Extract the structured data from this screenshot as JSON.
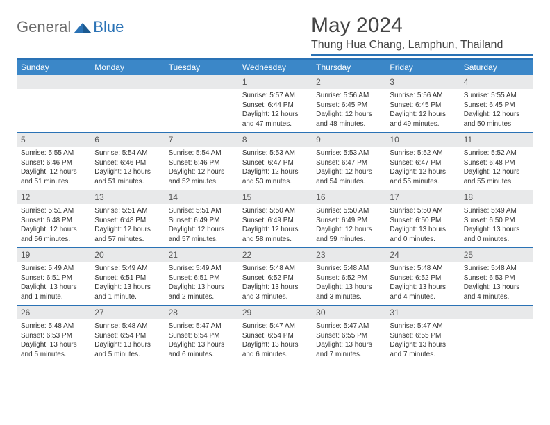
{
  "logo": {
    "part1": "General",
    "part2": "Blue"
  },
  "title": "May 2024",
  "location": "Thung Hua Chang, Lamphun, Thailand",
  "colors": {
    "accent": "#3b87c8",
    "rule": "#2a72b5",
    "dayBg": "#e8e9ea",
    "text": "#333333"
  },
  "dayHeaders": [
    "Sunday",
    "Monday",
    "Tuesday",
    "Wednesday",
    "Thursday",
    "Friday",
    "Saturday"
  ],
  "weeks": [
    [
      null,
      null,
      null,
      {
        "n": "1",
        "sr": "5:57 AM",
        "ss": "6:44 PM",
        "dl1": "12 hours",
        "dl2": "and 47 minutes."
      },
      {
        "n": "2",
        "sr": "5:56 AM",
        "ss": "6:45 PM",
        "dl1": "12 hours",
        "dl2": "and 48 minutes."
      },
      {
        "n": "3",
        "sr": "5:56 AM",
        "ss": "6:45 PM",
        "dl1": "12 hours",
        "dl2": "and 49 minutes."
      },
      {
        "n": "4",
        "sr": "5:55 AM",
        "ss": "6:45 PM",
        "dl1": "12 hours",
        "dl2": "and 50 minutes."
      }
    ],
    [
      {
        "n": "5",
        "sr": "5:55 AM",
        "ss": "6:46 PM",
        "dl1": "12 hours",
        "dl2": "and 51 minutes."
      },
      {
        "n": "6",
        "sr": "5:54 AM",
        "ss": "6:46 PM",
        "dl1": "12 hours",
        "dl2": "and 51 minutes."
      },
      {
        "n": "7",
        "sr": "5:54 AM",
        "ss": "6:46 PM",
        "dl1": "12 hours",
        "dl2": "and 52 minutes."
      },
      {
        "n": "8",
        "sr": "5:53 AM",
        "ss": "6:47 PM",
        "dl1": "12 hours",
        "dl2": "and 53 minutes."
      },
      {
        "n": "9",
        "sr": "5:53 AM",
        "ss": "6:47 PM",
        "dl1": "12 hours",
        "dl2": "and 54 minutes."
      },
      {
        "n": "10",
        "sr": "5:52 AM",
        "ss": "6:47 PM",
        "dl1": "12 hours",
        "dl2": "and 55 minutes."
      },
      {
        "n": "11",
        "sr": "5:52 AM",
        "ss": "6:48 PM",
        "dl1": "12 hours",
        "dl2": "and 55 minutes."
      }
    ],
    [
      {
        "n": "12",
        "sr": "5:51 AM",
        "ss": "6:48 PM",
        "dl1": "12 hours",
        "dl2": "and 56 minutes."
      },
      {
        "n": "13",
        "sr": "5:51 AM",
        "ss": "6:48 PM",
        "dl1": "12 hours",
        "dl2": "and 57 minutes."
      },
      {
        "n": "14",
        "sr": "5:51 AM",
        "ss": "6:49 PM",
        "dl1": "12 hours",
        "dl2": "and 57 minutes."
      },
      {
        "n": "15",
        "sr": "5:50 AM",
        "ss": "6:49 PM",
        "dl1": "12 hours",
        "dl2": "and 58 minutes."
      },
      {
        "n": "16",
        "sr": "5:50 AM",
        "ss": "6:49 PM",
        "dl1": "12 hours",
        "dl2": "and 59 minutes."
      },
      {
        "n": "17",
        "sr": "5:50 AM",
        "ss": "6:50 PM",
        "dl1": "13 hours",
        "dl2": "and 0 minutes."
      },
      {
        "n": "18",
        "sr": "5:49 AM",
        "ss": "6:50 PM",
        "dl1": "13 hours",
        "dl2": "and 0 minutes."
      }
    ],
    [
      {
        "n": "19",
        "sr": "5:49 AM",
        "ss": "6:51 PM",
        "dl1": "13 hours",
        "dl2": "and 1 minute."
      },
      {
        "n": "20",
        "sr": "5:49 AM",
        "ss": "6:51 PM",
        "dl1": "13 hours",
        "dl2": "and 1 minute."
      },
      {
        "n": "21",
        "sr": "5:49 AM",
        "ss": "6:51 PM",
        "dl1": "13 hours",
        "dl2": "and 2 minutes."
      },
      {
        "n": "22",
        "sr": "5:48 AM",
        "ss": "6:52 PM",
        "dl1": "13 hours",
        "dl2": "and 3 minutes."
      },
      {
        "n": "23",
        "sr": "5:48 AM",
        "ss": "6:52 PM",
        "dl1": "13 hours",
        "dl2": "and 3 minutes."
      },
      {
        "n": "24",
        "sr": "5:48 AM",
        "ss": "6:52 PM",
        "dl1": "13 hours",
        "dl2": "and 4 minutes."
      },
      {
        "n": "25",
        "sr": "5:48 AM",
        "ss": "6:53 PM",
        "dl1": "13 hours",
        "dl2": "and 4 minutes."
      }
    ],
    [
      {
        "n": "26",
        "sr": "5:48 AM",
        "ss": "6:53 PM",
        "dl1": "13 hours",
        "dl2": "and 5 minutes."
      },
      {
        "n": "27",
        "sr": "5:48 AM",
        "ss": "6:54 PM",
        "dl1": "13 hours",
        "dl2": "and 5 minutes."
      },
      {
        "n": "28",
        "sr": "5:47 AM",
        "ss": "6:54 PM",
        "dl1": "13 hours",
        "dl2": "and 6 minutes."
      },
      {
        "n": "29",
        "sr": "5:47 AM",
        "ss": "6:54 PM",
        "dl1": "13 hours",
        "dl2": "and 6 minutes."
      },
      {
        "n": "30",
        "sr": "5:47 AM",
        "ss": "6:55 PM",
        "dl1": "13 hours",
        "dl2": "and 7 minutes."
      },
      {
        "n": "31",
        "sr": "5:47 AM",
        "ss": "6:55 PM",
        "dl1": "13 hours",
        "dl2": "and 7 minutes."
      },
      null
    ]
  ],
  "labels": {
    "sunrise": "Sunrise:",
    "sunset": "Sunset:",
    "daylight": "Daylight:"
  }
}
